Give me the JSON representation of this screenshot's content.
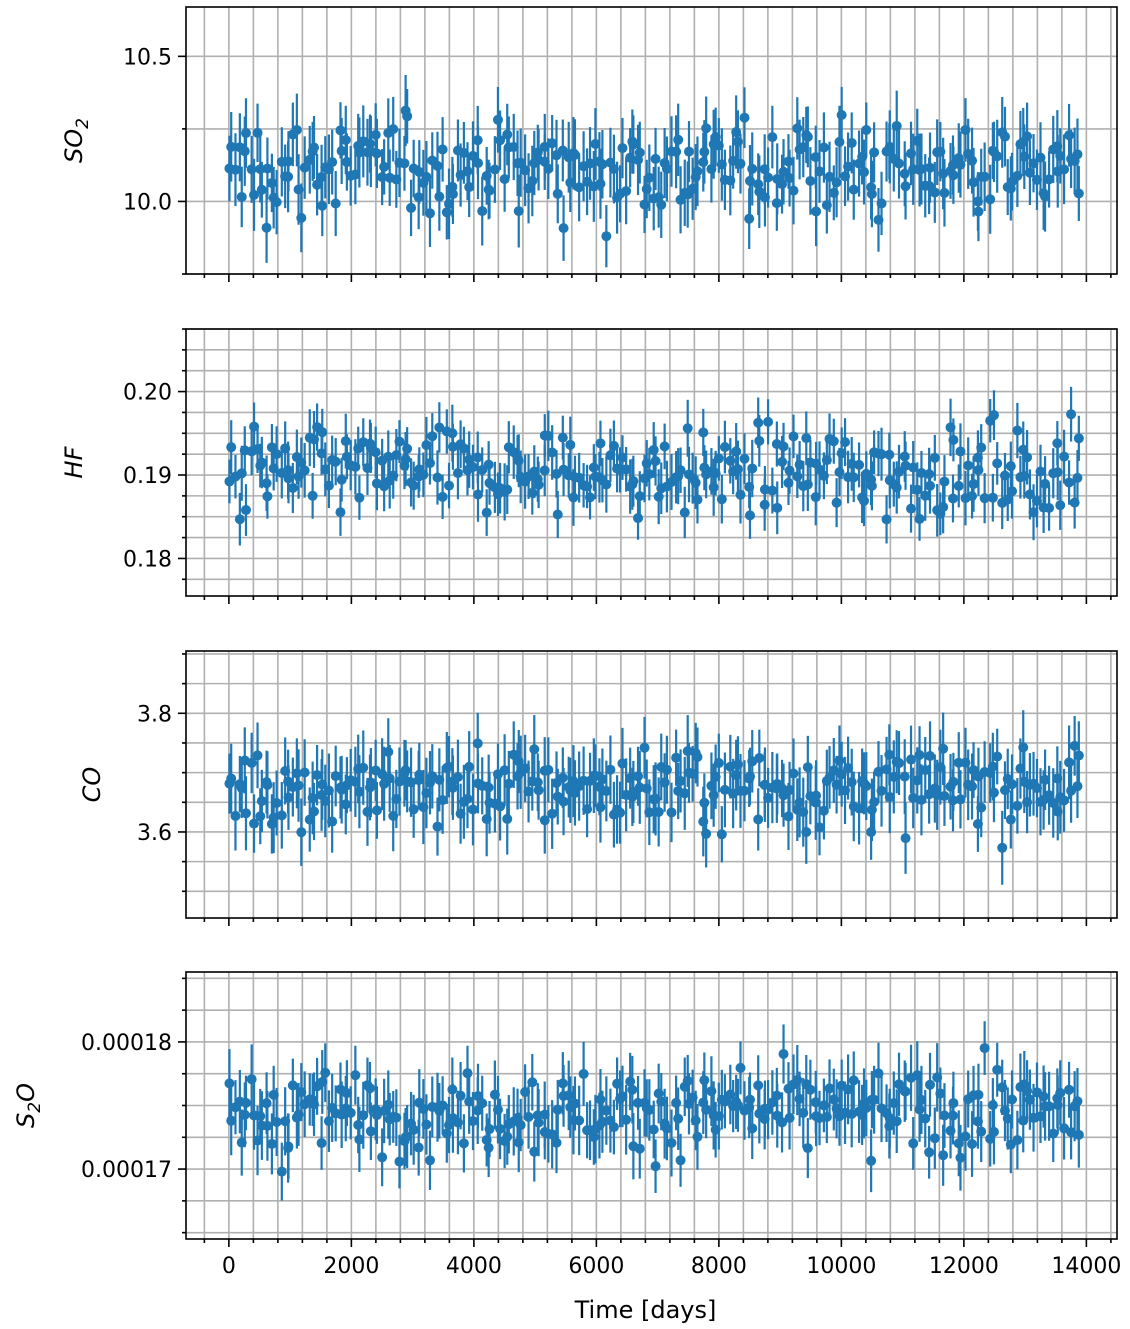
{
  "chart_data": {
    "type": "scatter",
    "shared_x": true,
    "xlabel": "Time [days]",
    "xlim": [
      -700,
      14500
    ],
    "xticks": [
      0,
      2000,
      4000,
      6000,
      8000,
      10000,
      12000,
      14000
    ],
    "xtick_labels": [
      "0",
      "2000",
      "4000",
      "6000",
      "8000",
      "10000",
      "12000",
      "14000"
    ],
    "x_minor_step": 400,
    "n_points_per_panel": 280,
    "x_range": [
      0,
      13900
    ],
    "grid": "on (major and minor)",
    "marker_color": "#1f77b4",
    "panels": [
      {
        "ylabel_main": "SO",
        "ylabel_sub": "2",
        "ylim": [
          9.75,
          10.67
        ],
        "yticks": [
          10.0,
          10.5
        ],
        "ytick_labels": [
          "10.0",
          "10.5"
        ],
        "yminor_step": 0.25,
        "center": 10.12,
        "spread": 0.13,
        "error": 0.11
      },
      {
        "ylabel_main": "HF",
        "ylabel_sub": "",
        "ylim": [
          0.1755,
          0.2075
        ],
        "yticks": [
          0.18,
          0.19,
          0.2
        ],
        "ytick_labels": [
          "0.18",
          "0.19",
          "0.20"
        ],
        "yminor_step": 0.0025,
        "center": 0.1902,
        "spread": 0.004,
        "error": 0.003
      },
      {
        "ylabel_main": "CO",
        "ylabel_sub": "",
        "ylim": [
          3.455,
          3.905
        ],
        "yticks": [
          3.6,
          3.8
        ],
        "ytick_labels": [
          "3.6",
          "3.8"
        ],
        "yminor_step": 0.05,
        "center": 3.675,
        "spread": 0.055,
        "error": 0.055
      },
      {
        "ylabel_main": "S",
        "ylabel_sub": "2",
        "ylabel_tail": "O",
        "ylim": [
          0.0001645,
          0.0001855
        ],
        "yticks": [
          0.00017,
          0.00018
        ],
        "ytick_labels": [
          "0.00017",
          "0.00018"
        ],
        "yminor_step": 2.5e-06,
        "center": 0.0001745,
        "spread": 2.5e-06,
        "error": 2.4e-06
      }
    ]
  }
}
